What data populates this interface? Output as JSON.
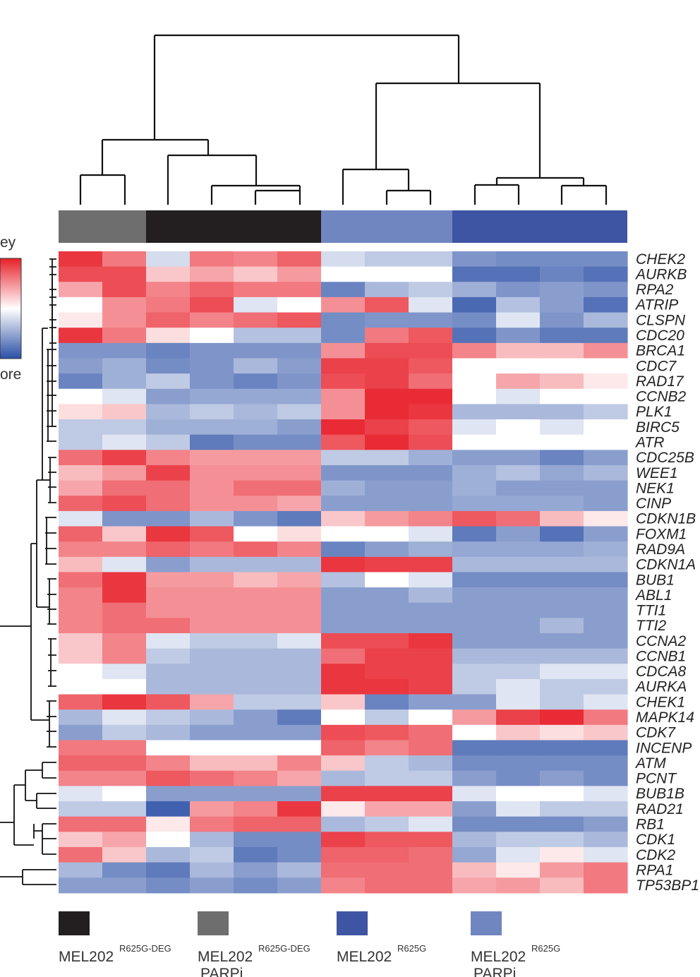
{
  "chart_data": {
    "type": "heatmap",
    "color_key": {
      "title": "ey",
      "subtitle": "ore",
      "colors": {
        "high": "#e8202a",
        "mid": "#ffffff",
        "low": "#2a4fa6"
      },
      "range": [
        -2,
        2
      ]
    },
    "column_groups": [
      {
        "color": "#6e6e6e",
        "columns": 2
      },
      {
        "color": "#231f20",
        "columns": 4
      },
      {
        "color": "#6f86c0",
        "columns": 3
      },
      {
        "color": "#3d55a2",
        "columns": 4
      }
    ],
    "rows": [
      "CHEK2",
      "AURKB",
      "RPA2",
      "ATRIP",
      "CLSPN",
      "CDC20",
      "BRCA1",
      "CDC7",
      "RAD17",
      "CCNB2",
      "PLK1",
      "BIRC5",
      "ATR",
      "CDC25B",
      "WEE1",
      "NEK1",
      "CINP",
      "CDKN1B",
      "FOXM1",
      "RAD9A",
      "CDKN1A",
      "BUB1",
      "ABL1",
      "TTI1",
      "TTI2",
      "CCNA2",
      "CCNB1",
      "CDCA8",
      "AURKA",
      "CHEK1",
      "MAPK14",
      "CDK7",
      "INCENP",
      "ATM",
      "PCNT",
      "BUB1B",
      "RAD21",
      "RB1",
      "CDK1",
      "CDK2",
      "RPA1",
      "TP53BP1"
    ],
    "values": [
      [
        1.8,
        1.2,
        -0.4,
        1.2,
        1.1,
        1.4,
        -0.4,
        -0.6,
        -0.6,
        -1.2,
        -1.3,
        -1.3,
        -1.3
      ],
      [
        1.6,
        1.6,
        0.5,
        0.8,
        0.5,
        0.9,
        0,
        0,
        0,
        -1.6,
        -1.6,
        -1.4,
        -1.6
      ],
      [
        0.8,
        1.6,
        1.1,
        1.4,
        1.2,
        1.2,
        -1.4,
        -0.8,
        -0.6,
        -0.9,
        -1.2,
        -1.1,
        -1.2
      ],
      [
        0,
        1.0,
        1.2,
        1.6,
        -0.3,
        0,
        1.0,
        1.5,
        -0.3,
        -1.7,
        -0.7,
        -1.1,
        -1.6
      ],
      [
        0.2,
        1.0,
        1.4,
        1.1,
        1.3,
        1.5,
        -1.3,
        -1.2,
        -1.2,
        -1.3,
        -0.3,
        -1.2,
        -0.8
      ],
      [
        1.8,
        1.2,
        0.3,
        0,
        -0.7,
        -0.7,
        -1.3,
        1.2,
        1.5,
        -1.6,
        -1.2,
        -1.5,
        -1.5
      ],
      [
        -1.2,
        -1.2,
        -1.4,
        -1.2,
        -1.2,
        -1.2,
        1.0,
        1.6,
        1.6,
        1.1,
        0.6,
        0.6,
        1.0
      ],
      [
        -1.1,
        -0.9,
        -1.3,
        -1.2,
        -0.8,
        -1.1,
        1.7,
        1.7,
        1.5,
        0,
        0,
        0,
        0
      ],
      [
        -1.4,
        -0.9,
        -0.6,
        -1.2,
        -1.4,
        -1.2,
        1.6,
        1.7,
        1.3,
        0,
        0.8,
        0.6,
        0.2
      ],
      [
        0,
        -0.3,
        -1.1,
        -1.0,
        -1.0,
        -1.0,
        1.0,
        1.9,
        1.9,
        0,
        -0.3,
        0,
        0
      ],
      [
        0.3,
        0.5,
        -0.8,
        -0.6,
        -0.8,
        -0.6,
        1.0,
        1.9,
        1.8,
        -0.8,
        -0.8,
        -0.8,
        -0.6
      ],
      [
        -0.6,
        -0.6,
        -0.9,
        -0.9,
        -0.9,
        -1.1,
        1.9,
        1.7,
        1.5,
        -0.3,
        0,
        -0.3,
        0
      ],
      [
        -0.6,
        -0.3,
        -0.6,
        -1.5,
        -1.3,
        -1.3,
        1.5,
        1.9,
        1.6,
        0,
        0,
        0,
        0
      ],
      [
        1.3,
        1.7,
        1.1,
        0.9,
        0.9,
        0.9,
        -0.6,
        -0.6,
        -0.9,
        -1.1,
        -1.1,
        -1.4,
        -1.1
      ],
      [
        0.6,
        0.9,
        1.7,
        1.0,
        1.0,
        1.0,
        -1.2,
        -1.2,
        -1.2,
        -0.9,
        -0.7,
        -1.0,
        -0.8
      ],
      [
        0.8,
        1.3,
        1.3,
        1.0,
        1.3,
        1.3,
        -0.9,
        -1.1,
        -1.1,
        -0.9,
        -1.1,
        -1.1,
        -1.1
      ],
      [
        1.4,
        1.6,
        1.3,
        1.0,
        1.0,
        0.8,
        -1.1,
        -1.1,
        -1.1,
        -1.0,
        -1.0,
        -1.0,
        -1.1
      ],
      [
        -0.3,
        -1.2,
        -1.2,
        -0.8,
        -1.2,
        -1.5,
        0.5,
        0.9,
        1.1,
        1.5,
        1.3,
        0.6,
        0.2
      ],
      [
        1.4,
        0.5,
        1.8,
        1.5,
        0,
        0.3,
        0,
        0,
        -0.3,
        -1.5,
        -1.1,
        -1.6,
        -1.1
      ],
      [
        1.1,
        1.1,
        1.4,
        1.2,
        1.4,
        1.1,
        -1.4,
        -1.1,
        -0.9,
        -1.0,
        -1.0,
        -1.0,
        -0.9
      ],
      [
        0.6,
        -0.3,
        -1.1,
        -0.8,
        -0.8,
        -0.8,
        1.8,
        1.7,
        1.7,
        -0.8,
        -0.8,
        -0.8,
        -0.8
      ],
      [
        1.3,
        1.8,
        0.9,
        0.9,
        0.6,
        0.8,
        -0.7,
        0,
        -0.3,
        -1.3,
        -1.3,
        -1.3,
        -1.3
      ],
      [
        1.1,
        1.8,
        1.0,
        1.0,
        1.0,
        1.0,
        -1.1,
        -1.1,
        -0.8,
        -1.1,
        -1.1,
        -1.1,
        -1.1
      ],
      [
        1.1,
        1.3,
        1.0,
        1.0,
        1.0,
        1.0,
        -1.1,
        -1.1,
        -1.1,
        -1.1,
        -1.1,
        -1.1,
        -1.1
      ],
      [
        1.1,
        1.3,
        1.3,
        1.0,
        1.0,
        1.0,
        -1.1,
        -1.1,
        -1.1,
        -1.1,
        -1.1,
        -0.8,
        -1.1
      ],
      [
        0.5,
        1.1,
        -0.3,
        -0.6,
        -0.6,
        -0.3,
        1.6,
        1.6,
        1.8,
        -1.1,
        -1.1,
        -1.1,
        -1.1
      ],
      [
        0.5,
        1.1,
        -0.6,
        -0.8,
        -0.8,
        -0.8,
        1.3,
        1.7,
        1.7,
        -0.8,
        -0.8,
        -0.8,
        -0.8
      ],
      [
        0,
        -0.3,
        -0.8,
        -0.8,
        -0.8,
        -0.8,
        1.8,
        1.7,
        1.7,
        -0.6,
        -0.6,
        -0.3,
        -0.3
      ],
      [
        0,
        0,
        -0.8,
        -0.8,
        -0.8,
        -0.8,
        1.8,
        1.8,
        1.7,
        -0.6,
        -0.3,
        -0.6,
        -0.6
      ],
      [
        1.4,
        1.8,
        1.5,
        0.8,
        -0.6,
        -0.6,
        0.5,
        -1.4,
        -1.1,
        -1.1,
        -0.3,
        -0.6,
        -0.3
      ],
      [
        -0.8,
        -0.3,
        -0.6,
        -0.8,
        -1.1,
        -1.5,
        0,
        -0.6,
        0,
        0.9,
        1.7,
        1.9,
        1.2
      ],
      [
        -1.1,
        -0.6,
        -0.8,
        -1.1,
        -1.1,
        -1.1,
        1.6,
        1.5,
        1.3,
        0,
        0.5,
        0.3,
        0.5
      ],
      [
        1.2,
        1.2,
        0,
        0,
        0,
        0,
        1.4,
        1.1,
        1.3,
        -1.5,
        -1.5,
        -1.5,
        -1.5
      ],
      [
        1.4,
        1.4,
        1.1,
        0.6,
        0.6,
        1.1,
        0.5,
        -0.6,
        -0.8,
        -1.3,
        -1.3,
        -1.3,
        -1.3
      ],
      [
        1.1,
        1.1,
        1.5,
        1.3,
        1.1,
        0.8,
        -0.8,
        -0.6,
        -0.6,
        -1.1,
        -1.3,
        -1.1,
        -1.3
      ],
      [
        -0.3,
        0,
        -1.1,
        -1.1,
        -1.1,
        -1.1,
        1.7,
        1.7,
        1.7,
        -0.3,
        0,
        0,
        -0.3
      ],
      [
        -0.6,
        -0.6,
        -1.8,
        0.9,
        1.1,
        1.8,
        0.2,
        0.8,
        0.8,
        -1.1,
        -0.3,
        -0.6,
        -0.6
      ],
      [
        1.3,
        1.3,
        0.2,
        1.2,
        1.4,
        1.4,
        -0.8,
        -0.6,
        -0.3,
        -1.3,
        -1.3,
        -1.3,
        -1.1
      ],
      [
        0.5,
        0.8,
        0,
        -0.8,
        -1.3,
        -1.3,
        1.7,
        1.5,
        1.5,
        -0.8,
        -0.6,
        -0.6,
        -0.8
      ],
      [
        1.3,
        0.5,
        -0.8,
        -0.6,
        -1.5,
        -1.3,
        1.4,
        1.4,
        1.3,
        -1.0,
        -0.3,
        0.2,
        -0.3
      ],
      [
        -0.8,
        -1.3,
        -1.5,
        -0.8,
        -1.1,
        -0.8,
        1.3,
        1.3,
        1.3,
        0.6,
        0.2,
        0.9,
        1.2
      ],
      [
        -1.1,
        -1.1,
        -1.3,
        -1.1,
        -1.3,
        -1.1,
        1.1,
        1.3,
        1.3,
        0.8,
        0.9,
        0.6,
        1.2
      ]
    ],
    "legend": [
      {
        "color": "#231f20",
        "label": "MEL202",
        "sup": "R625G-DEG",
        "line2": ""
      },
      {
        "color": "#6e6e6e",
        "label": "MEL202",
        "sup": "R625G-DEG",
        "line2": "PARPi"
      },
      {
        "color": "#3d55a2",
        "label": "MEL202",
        "sup": "R625G",
        "line2": ""
      },
      {
        "color": "#6f86c0",
        "label": "MEL202",
        "sup": "R625G",
        "line2": "PARPi"
      }
    ]
  }
}
